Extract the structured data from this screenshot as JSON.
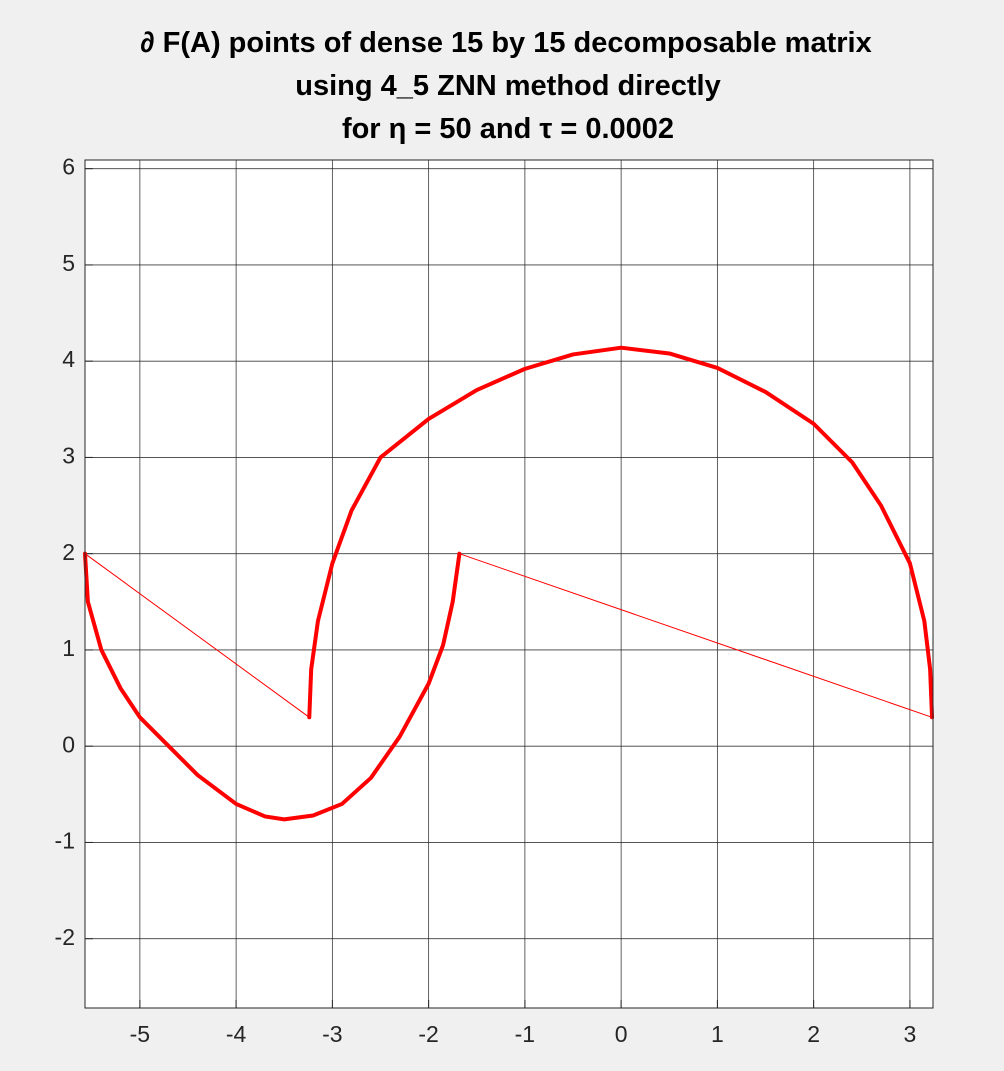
{
  "chart_data": {
    "type": "line",
    "title": [
      "∂ F(A) points of dense 15 by 15 decomposable matrix",
      "using 4_5 ZNN method directly",
      "for η = 50 and  τ = 0.0002"
    ],
    "xlim": [
      -5.57,
      3.24
    ],
    "ylim": [
      -2.72,
      6.09
    ],
    "xticks": [
      -5,
      -4,
      -3,
      -2,
      -1,
      0,
      1,
      2,
      3
    ],
    "yticks": [
      -2,
      -1,
      0,
      1,
      2,
      3,
      4,
      5,
      6
    ],
    "grid": true,
    "series": [
      {
        "color": "#ff0000",
        "line_width": 4,
        "x": [
          -5.57,
          -5.54,
          -5.4,
          -5.2,
          -5.0,
          -4.7,
          -4.4,
          -4.0,
          -3.7,
          -3.5,
          -3.2,
          -2.9,
          -2.6,
          -2.3,
          -2.0,
          -1.85,
          -1.75,
          -1.68,
          null,
          -3.24,
          -3.22,
          -3.15,
          -3.0,
          -2.8,
          -2.5,
          -2.0,
          -1.5,
          -1.0,
          -0.5,
          0,
          0.5,
          1.0,
          1.5,
          2.0,
          2.4,
          2.7,
          3.0,
          3.15,
          3.21,
          3.23
        ],
        "values": [
          2.0,
          1.5,
          1.0,
          0.6,
          0.3,
          0.0,
          -0.3,
          -0.6,
          -0.73,
          -0.76,
          -0.72,
          -0.6,
          -0.33,
          0.1,
          0.65,
          1.05,
          1.5,
          2.0,
          null,
          0.3,
          0.8,
          1.3,
          1.9,
          2.45,
          3.0,
          3.4,
          3.7,
          3.92,
          4.07,
          4.14,
          4.08,
          3.93,
          3.68,
          3.35,
          2.95,
          2.5,
          1.9,
          1.3,
          0.8,
          0.3
        ]
      },
      {
        "color": "#ff0000",
        "line_width": 1,
        "x": [
          -5.57,
          -3.24,
          null,
          -1.68,
          3.23
        ],
        "values": [
          2.0,
          0.3,
          null,
          2.0,
          0.3
        ]
      }
    ]
  }
}
